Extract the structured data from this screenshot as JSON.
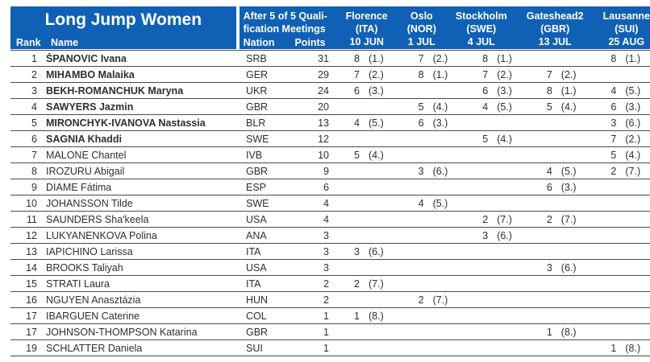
{
  "header": {
    "title": "Long Jump Women",
    "rank_label": "Rank",
    "name_label": "Name",
    "qualification_line1": "After 5 of 5 Quali-",
    "qualification_line2": "fication Meetings",
    "nation_label": "Nation",
    "points_label": "Points",
    "meetings": [
      {
        "city": "Florence",
        "country": "(ITA)",
        "date": "10 JUN"
      },
      {
        "city": "Oslo",
        "country": "(NOR)",
        "date": "1 JUL"
      },
      {
        "city": "Stockholm",
        "country": "(SWE)",
        "date": "4 JUL"
      },
      {
        "city": "Gateshead2",
        "country": "(GBR)",
        "date": "13 JUL"
      },
      {
        "city": "Lausanne",
        "country": "(SUI)",
        "date": "25 AUG"
      }
    ]
  },
  "colors": {
    "header_blue": "#1061B5",
    "header_text": "#FFFFFF",
    "row_border": "#4A4A4A",
    "body_text": "#2E2E2E"
  },
  "rows": [
    {
      "rank": "1",
      "name": "ŠPANOVIC Ivana",
      "bold": true,
      "nation": "SRB",
      "points": "31",
      "results": [
        {
          "pts": "8",
          "place": "(1.)"
        },
        {
          "pts": "7",
          "place": "(2.)"
        },
        {
          "pts": "8",
          "place": "(1.)"
        },
        {
          "pts": "",
          "place": ""
        },
        {
          "pts": "8",
          "place": "(1.)"
        }
      ]
    },
    {
      "rank": "2",
      "name": "MIHAMBO Malaika",
      "bold": true,
      "nation": "GER",
      "points": "29",
      "results": [
        {
          "pts": "7",
          "place": "(2.)"
        },
        {
          "pts": "8",
          "place": "(1.)"
        },
        {
          "pts": "7",
          "place": "(2.)"
        },
        {
          "pts": "7",
          "place": "(2.)"
        },
        {
          "pts": "",
          "place": ""
        }
      ]
    },
    {
      "rank": "3",
      "name": "BEKH-ROMANCHUK Maryna",
      "bold": true,
      "nation": "UKR",
      "points": "24",
      "results": [
        {
          "pts": "6",
          "place": "(3.)"
        },
        {
          "pts": "",
          "place": ""
        },
        {
          "pts": "6",
          "place": "(3.)"
        },
        {
          "pts": "8",
          "place": "(1.)"
        },
        {
          "pts": "4",
          "place": "(5.)"
        }
      ]
    },
    {
      "rank": "4",
      "name": "SAWYERS Jazmin",
      "bold": true,
      "nation": "GBR",
      "points": "20",
      "results": [
        {
          "pts": "",
          "place": ""
        },
        {
          "pts": "5",
          "place": "(4.)"
        },
        {
          "pts": "4",
          "place": "(5.)"
        },
        {
          "pts": "5",
          "place": "(4.)"
        },
        {
          "pts": "6",
          "place": "(3.)"
        }
      ]
    },
    {
      "rank": "5",
      "name": "MIRONCHYK-IVANOVA Nastassia",
      "bold": true,
      "nation": "BLR",
      "points": "13",
      "results": [
        {
          "pts": "4",
          "place": "(5.)"
        },
        {
          "pts": "6",
          "place": "(3.)"
        },
        {
          "pts": "",
          "place": ""
        },
        {
          "pts": "",
          "place": ""
        },
        {
          "pts": "3",
          "place": "(6.)"
        }
      ]
    },
    {
      "rank": "6",
      "name": "SAGNIA Khaddi",
      "bold": true,
      "nation": "SWE",
      "points": "12",
      "results": [
        {
          "pts": "",
          "place": ""
        },
        {
          "pts": "",
          "place": ""
        },
        {
          "pts": "5",
          "place": "(4.)"
        },
        {
          "pts": "",
          "place": ""
        },
        {
          "pts": "7",
          "place": "(2.)"
        }
      ]
    },
    {
      "rank": "7",
      "name": "MALONE Chantel",
      "bold": false,
      "nation": "IVB",
      "points": "10",
      "results": [
        {
          "pts": "5",
          "place": "(4.)"
        },
        {
          "pts": "",
          "place": ""
        },
        {
          "pts": "",
          "place": ""
        },
        {
          "pts": "",
          "place": ""
        },
        {
          "pts": "5",
          "place": "(4.)"
        }
      ]
    },
    {
      "rank": "8",
      "name": "IROZURU Abigail",
      "bold": false,
      "nation": "GBR",
      "points": "9",
      "results": [
        {
          "pts": "",
          "place": ""
        },
        {
          "pts": "3",
          "place": "(6.)"
        },
        {
          "pts": "",
          "place": ""
        },
        {
          "pts": "4",
          "place": "(5.)"
        },
        {
          "pts": "2",
          "place": "(7.)"
        }
      ]
    },
    {
      "rank": "9",
      "name": "DIAME Fátima",
      "bold": false,
      "nation": "ESP",
      "points": "6",
      "results": [
        {
          "pts": "",
          "place": ""
        },
        {
          "pts": "",
          "place": ""
        },
        {
          "pts": "",
          "place": ""
        },
        {
          "pts": "6",
          "place": "(3.)"
        },
        {
          "pts": "",
          "place": ""
        }
      ]
    },
    {
      "rank": "10",
      "name": "JOHANSSON Tilde",
      "bold": false,
      "nation": "SWE",
      "points": "4",
      "results": [
        {
          "pts": "",
          "place": ""
        },
        {
          "pts": "4",
          "place": "(5.)"
        },
        {
          "pts": "",
          "place": ""
        },
        {
          "pts": "",
          "place": ""
        },
        {
          "pts": "",
          "place": ""
        }
      ]
    },
    {
      "rank": "11",
      "name": "SAUNDERS Sha'keela",
      "bold": false,
      "nation": "USA",
      "points": "4",
      "results": [
        {
          "pts": "",
          "place": ""
        },
        {
          "pts": "",
          "place": ""
        },
        {
          "pts": "2",
          "place": "(7.)"
        },
        {
          "pts": "2",
          "place": "(7.)"
        },
        {
          "pts": "",
          "place": ""
        }
      ]
    },
    {
      "rank": "12",
      "name": "LUKYANENKOVA Polina",
      "bold": false,
      "nation": "ANA",
      "points": "3",
      "results": [
        {
          "pts": "",
          "place": ""
        },
        {
          "pts": "",
          "place": ""
        },
        {
          "pts": "3",
          "place": "(6.)"
        },
        {
          "pts": "",
          "place": ""
        },
        {
          "pts": "",
          "place": ""
        }
      ]
    },
    {
      "rank": "13",
      "name": "IAPICHINO Larissa",
      "bold": false,
      "nation": "ITA",
      "points": "3",
      "results": [
        {
          "pts": "3",
          "place": "(6.)"
        },
        {
          "pts": "",
          "place": ""
        },
        {
          "pts": "",
          "place": ""
        },
        {
          "pts": "",
          "place": ""
        },
        {
          "pts": "",
          "place": ""
        }
      ]
    },
    {
      "rank": "14",
      "name": "BROOKS Taliyah",
      "bold": false,
      "nation": "USA",
      "points": "3",
      "results": [
        {
          "pts": "",
          "place": ""
        },
        {
          "pts": "",
          "place": ""
        },
        {
          "pts": "",
          "place": ""
        },
        {
          "pts": "3",
          "place": "(6.)"
        },
        {
          "pts": "",
          "place": ""
        }
      ]
    },
    {
      "rank": "15",
      "name": "STRATI Laura",
      "bold": false,
      "nation": "ITA",
      "points": "2",
      "results": [
        {
          "pts": "2",
          "place": "(7.)"
        },
        {
          "pts": "",
          "place": ""
        },
        {
          "pts": "",
          "place": ""
        },
        {
          "pts": "",
          "place": ""
        },
        {
          "pts": "",
          "place": ""
        }
      ]
    },
    {
      "rank": "16",
      "name": "NGUYEN Anasztázia",
      "bold": false,
      "nation": "HUN",
      "points": "2",
      "results": [
        {
          "pts": "",
          "place": ""
        },
        {
          "pts": "2",
          "place": "(7.)"
        },
        {
          "pts": "",
          "place": ""
        },
        {
          "pts": "",
          "place": ""
        },
        {
          "pts": "",
          "place": ""
        }
      ]
    },
    {
      "rank": "17",
      "name": "IBARGUEN Caterine",
      "bold": false,
      "nation": "COL",
      "points": "1",
      "results": [
        {
          "pts": "1",
          "place": "(8.)"
        },
        {
          "pts": "",
          "place": ""
        },
        {
          "pts": "",
          "place": ""
        },
        {
          "pts": "",
          "place": ""
        },
        {
          "pts": "",
          "place": ""
        }
      ]
    },
    {
      "rank": "17",
      "name": "JOHNSON-THOMPSON Katarina",
      "bold": false,
      "nation": "GBR",
      "points": "1",
      "results": [
        {
          "pts": "",
          "place": ""
        },
        {
          "pts": "",
          "place": ""
        },
        {
          "pts": "",
          "place": ""
        },
        {
          "pts": "1",
          "place": "(8.)"
        },
        {
          "pts": "",
          "place": ""
        }
      ]
    },
    {
      "rank": "19",
      "name": "SCHLATTER Daniela",
      "bold": false,
      "nation": "SUI",
      "points": "1",
      "results": [
        {
          "pts": "",
          "place": ""
        },
        {
          "pts": "",
          "place": ""
        },
        {
          "pts": "",
          "place": ""
        },
        {
          "pts": "",
          "place": ""
        },
        {
          "pts": "1",
          "place": "(8.)"
        }
      ]
    }
  ]
}
